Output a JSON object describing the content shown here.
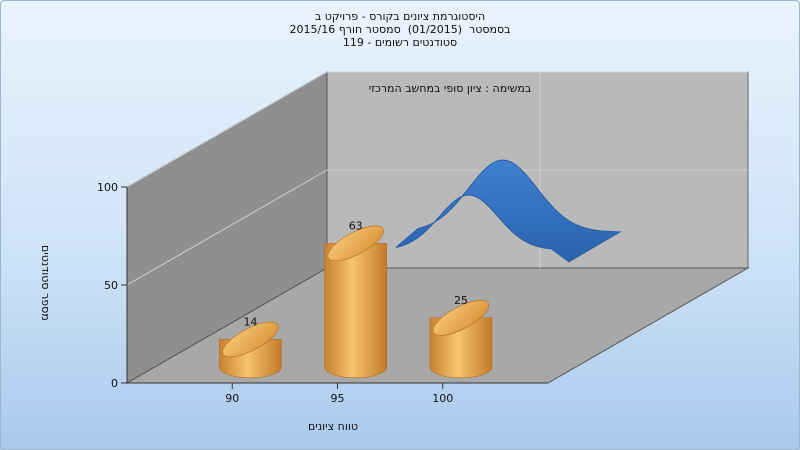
{
  "chart_data": {
    "type": "bar",
    "title": [
      "היסטוגרמת ציונים בקורס - פרויקט ב",
      "בסמסטר  (01/2015)  סמסטר חורף 2015/16",
      "סטודנטים רשומים - 119"
    ],
    "xlabel": "טווח ציונים",
    "ylabel": "מספר סטודנטים",
    "annotation": "במשימה : ציון סופי במחשב המרכזי",
    "categories": [
      90,
      95,
      100
    ],
    "values": [
      14,
      63,
      25
    ],
    "y_ticks": [
      0,
      50,
      100
    ],
    "ylim": [
      0,
      100
    ],
    "grid": true,
    "bar_color": "#e0a24a",
    "curve_color": "#2f6fbf",
    "wall_color_left": "#8f8f8f",
    "wall_color_back": "#b9b9b9",
    "floor_color": "#a8a8a8"
  }
}
